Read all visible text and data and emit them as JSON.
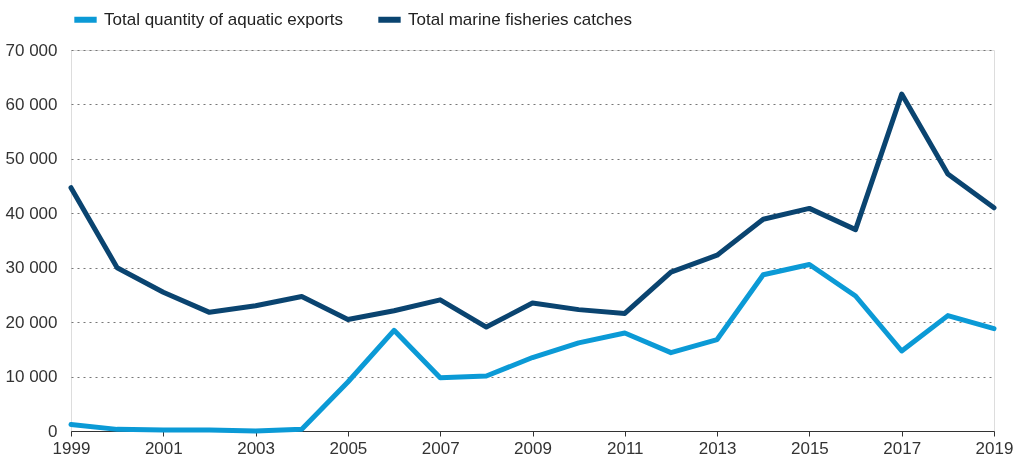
{
  "chart_data": {
    "type": "line",
    "x": [
      1999,
      2000,
      2001,
      2002,
      2003,
      2004,
      2005,
      2006,
      2007,
      2008,
      2009,
      2010,
      2011,
      2012,
      2013,
      2014,
      2015,
      2016,
      2017,
      2018,
      2019
    ],
    "series": [
      {
        "name": "Total quantity of aquatic exports",
        "color": "#0b9ad6",
        "values": [
          1200,
          300,
          200,
          200,
          0,
          300,
          9000,
          18500,
          9800,
          10100,
          13500,
          16200,
          18000,
          14400,
          16800,
          28700,
          30600,
          24800,
          14700,
          21200,
          18800
        ]
      },
      {
        "name": "Total marine fisheries catches",
        "color": "#0a4470",
        "values": [
          44700,
          30000,
          25500,
          21800,
          23000,
          24700,
          20500,
          22100,
          24100,
          19100,
          23500,
          22300,
          21600,
          29200,
          32300,
          38900,
          40900,
          37000,
          61900,
          47200,
          41000
        ]
      }
    ],
    "xlim": [
      1999,
      2019
    ],
    "xticks": [
      1999,
      2001,
      2003,
      2005,
      2007,
      2009,
      2011,
      2013,
      2015,
      2017,
      2019
    ],
    "ylim": [
      0,
      70000
    ],
    "yticks": [
      0,
      {
        "value": 10000,
        "label": "10 000"
      },
      {
        "value": 20000,
        "label": "20 000"
      },
      {
        "value": 30000,
        "label": "30 000"
      },
      {
        "value": 40000,
        "label": "40 000"
      },
      {
        "value": 50000,
        "label": "50 000"
      },
      {
        "value": 60000,
        "label": "60 000"
      },
      {
        "value": 70000,
        "label": "70 000"
      }
    ],
    "grid": "y",
    "legend": "top left",
    "marker": "none",
    "line_style": "solid"
  }
}
